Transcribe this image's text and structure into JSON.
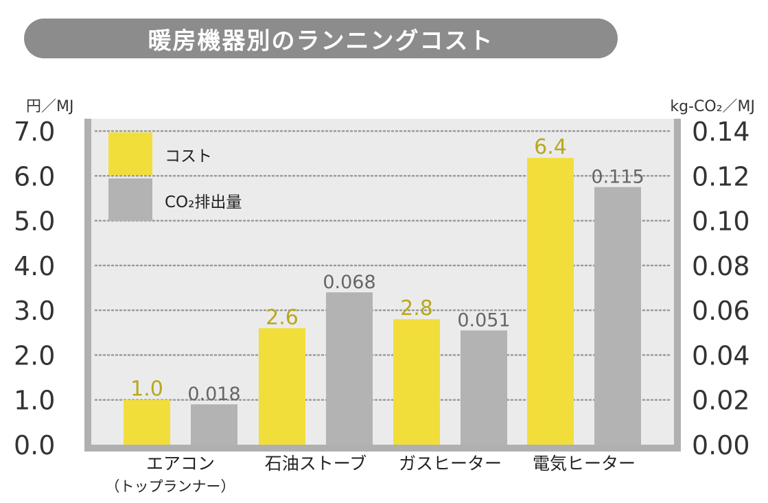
{
  "title": "暖房機器別のランニングコスト",
  "chart_data": {
    "type": "bar",
    "title": "暖房機器別のランニングコスト",
    "categories": [
      "エアコン",
      "石油ストーブ",
      "ガスヒーター",
      "電気ヒーター"
    ],
    "category_sublabels": [
      "（トップランナー）",
      "",
      "",
      ""
    ],
    "y_left": {
      "label": "円／MJ",
      "min": 0,
      "max": 7,
      "ticks": [
        "0.0",
        "1.0",
        "2.0",
        "3.0",
        "4.0",
        "5.0",
        "6.0",
        "7.0"
      ]
    },
    "y_right": {
      "label": "kg-CO₂／MJ",
      "min": 0,
      "max": 0.14,
      "ticks": [
        "0.00",
        "0.02",
        "0.04",
        "0.06",
        "0.08",
        "0.10",
        "0.12",
        "0.14"
      ]
    },
    "series": [
      {
        "name": "コスト",
        "axis": "left",
        "color": "#f2de3a",
        "label_color": "#b8a81a",
        "values": [
          1.0,
          2.6,
          2.8,
          6.4
        ],
        "labels": [
          "1.0",
          "2.6",
          "2.8",
          "6.4"
        ]
      },
      {
        "name": "CO₂排出量",
        "axis": "right",
        "color": "#b3b3b3",
        "label_color": "#666666",
        "values": [
          0.018,
          0.068,
          0.051,
          0.115
        ],
        "labels": [
          "0.018",
          "0.068",
          "0.051",
          "0.115"
        ]
      }
    ],
    "legend": "top-left",
    "grid": true,
    "colors": {
      "plot_bg": "#ebebeb",
      "frame": "#b0b0b0",
      "grid": "#9a9a9a"
    }
  }
}
